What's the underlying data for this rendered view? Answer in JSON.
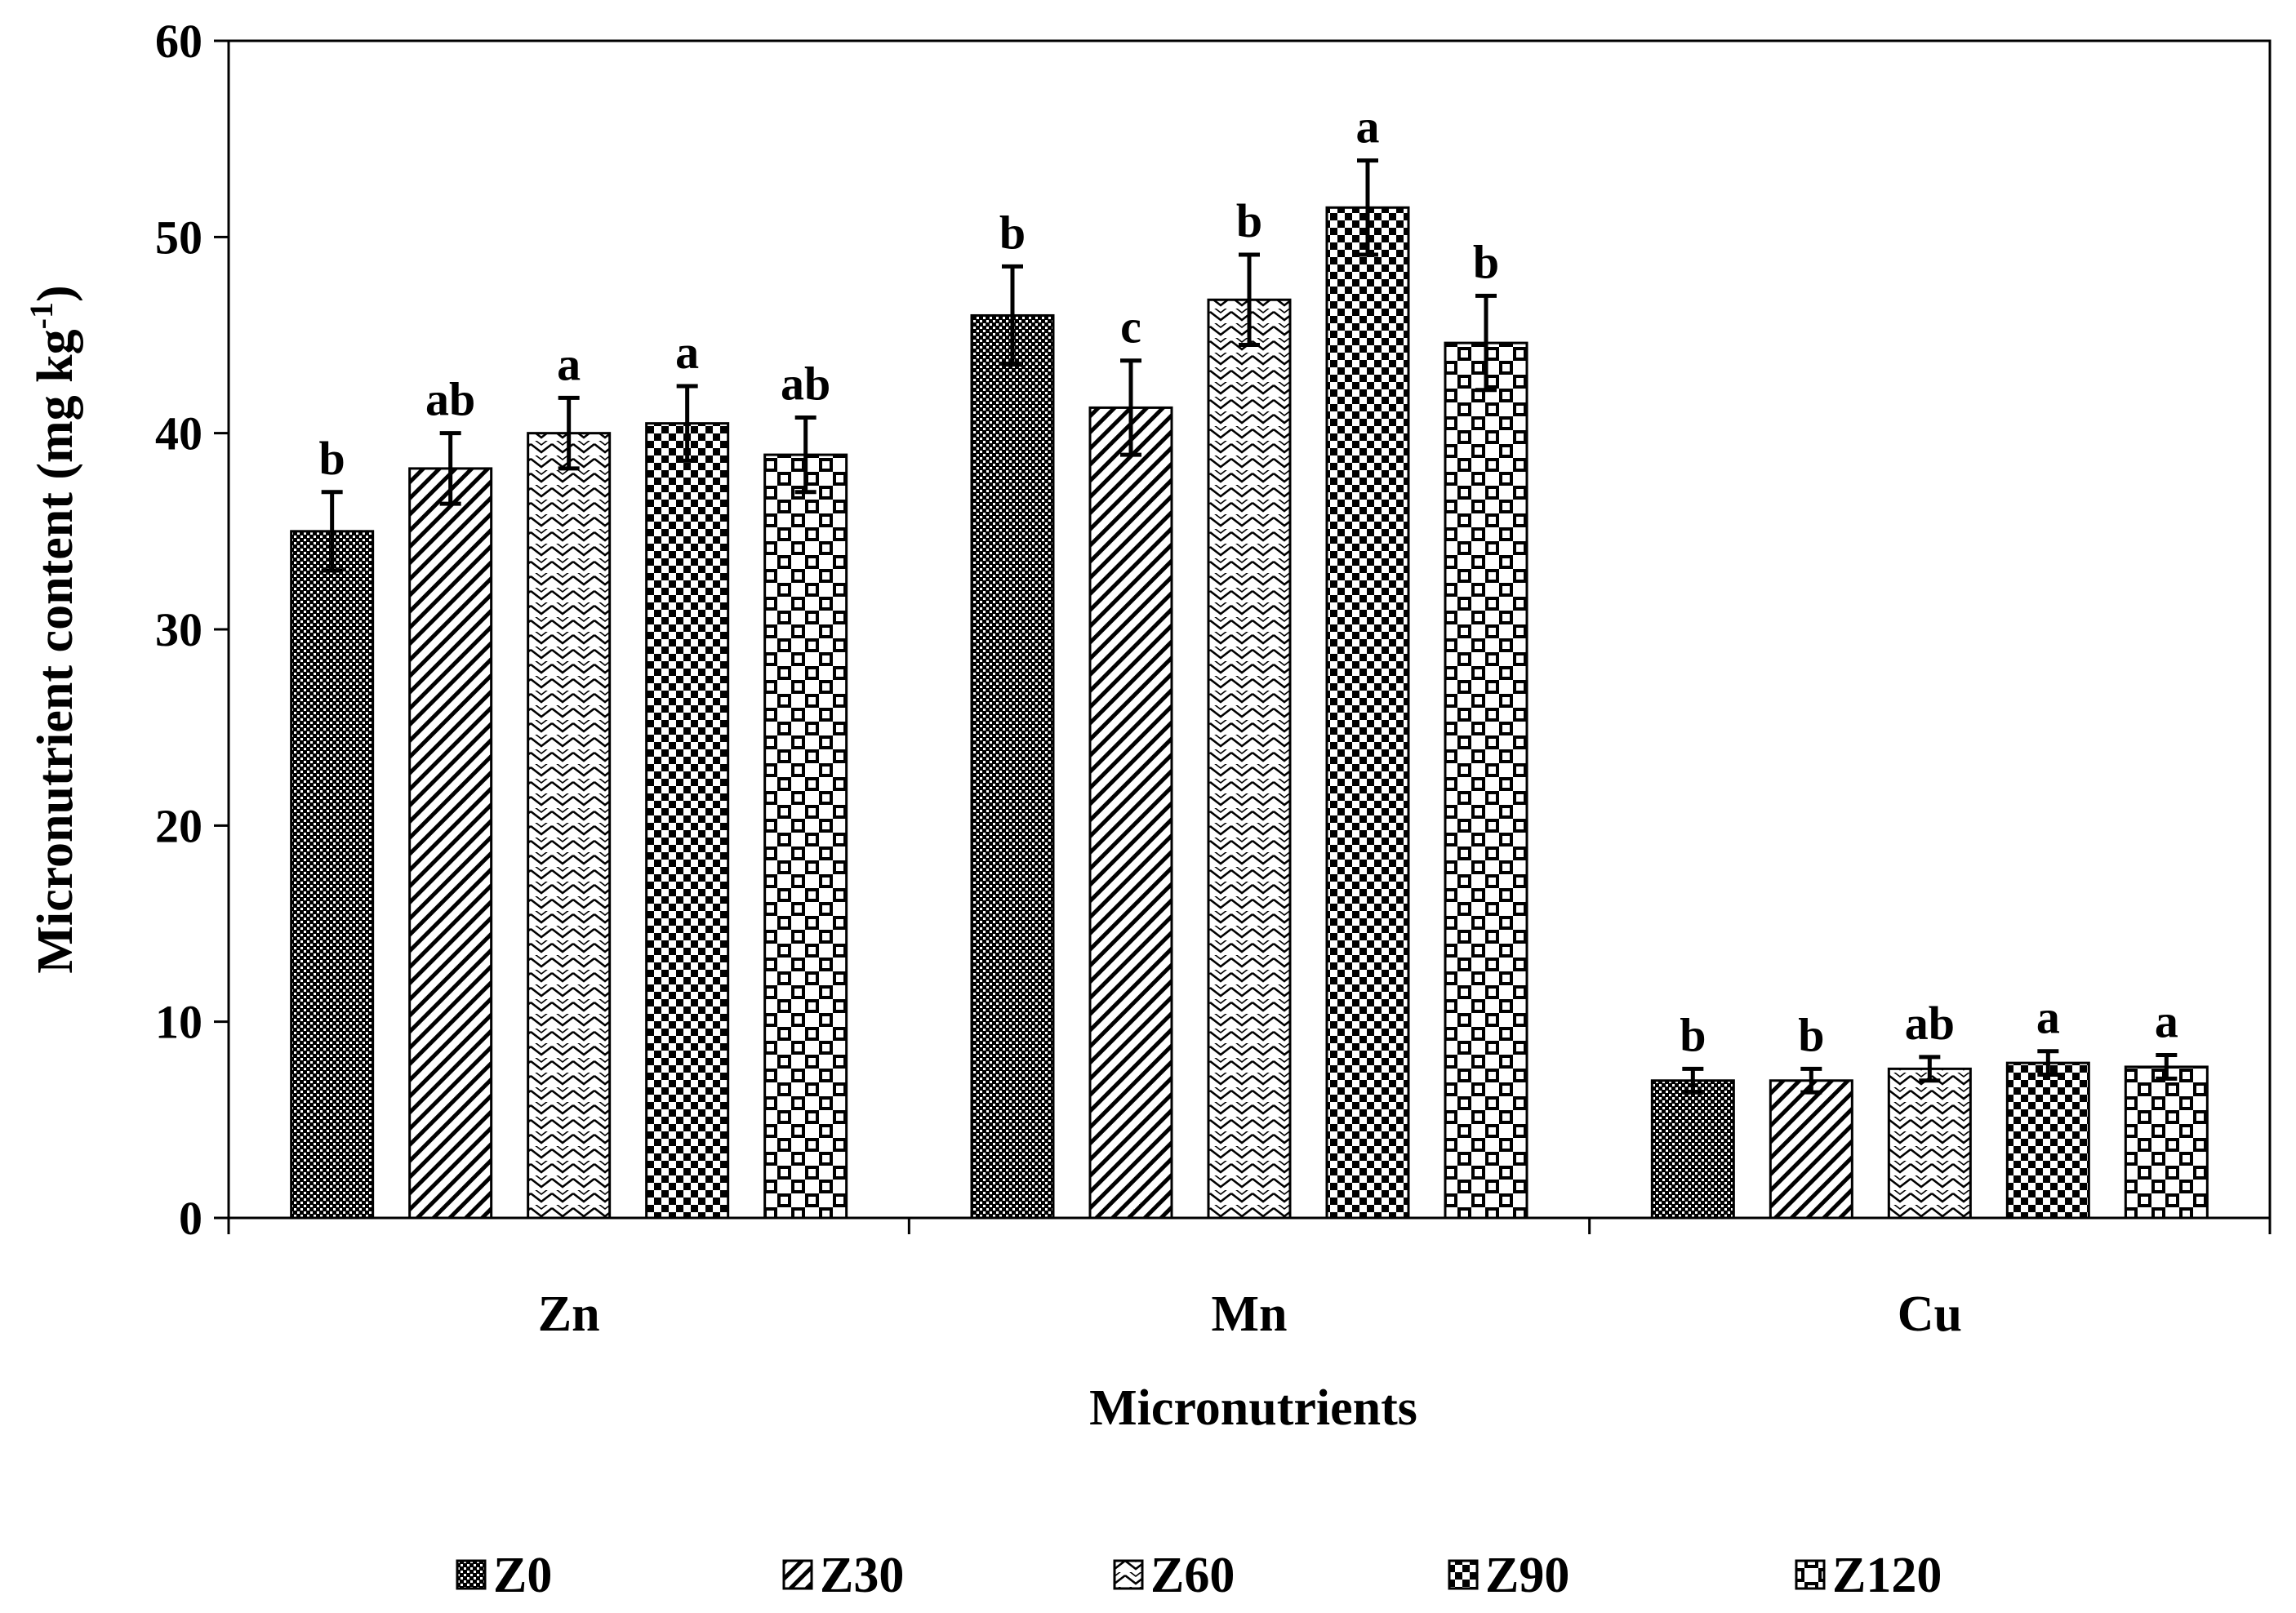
{
  "chart_data": {
    "type": "bar",
    "title": "",
    "xlabel": "Micronutrients",
    "ylabel": "Micronutrient content (mg kg",
    "ylabel_sup": "-1",
    "ylabel_tail": ")",
    "ylim": [
      0,
      60
    ],
    "yticks": [
      "0",
      "10",
      "20",
      "30",
      "40",
      "50",
      "60"
    ],
    "categories": [
      "Zn",
      "Mn",
      "Cu"
    ],
    "legend_position": "bottom",
    "series": [
      {
        "name": "Z0",
        "pattern": "dense-check",
        "values": [
          35.0,
          46.0,
          7.0
        ],
        "errors": [
          2.0,
          2.5,
          0.6
        ],
        "letters": [
          "b",
          "b",
          "b"
        ]
      },
      {
        "name": "Z30",
        "pattern": "diagonal",
        "values": [
          38.2,
          41.3,
          7.0
        ],
        "errors": [
          1.8,
          2.4,
          0.6
        ],
        "letters": [
          "ab",
          "c",
          "b"
        ]
      },
      {
        "name": "Z60",
        "pattern": "zigzag",
        "values": [
          40.0,
          46.8,
          7.6
        ],
        "errors": [
          1.8,
          2.3,
          0.6
        ],
        "letters": [
          "a",
          "b",
          "ab"
        ]
      },
      {
        "name": "Z90",
        "pattern": "checker",
        "values": [
          40.5,
          51.5,
          7.9
        ],
        "errors": [
          1.9,
          2.4,
          0.6
        ],
        "letters": [
          "a",
          "a",
          "a"
        ]
      },
      {
        "name": "Z120",
        "pattern": "large-check",
        "values": [
          38.9,
          44.6,
          7.7
        ],
        "errors": [
          1.9,
          2.4,
          0.6
        ],
        "letters": [
          "ab",
          "b",
          "a"
        ]
      }
    ]
  }
}
